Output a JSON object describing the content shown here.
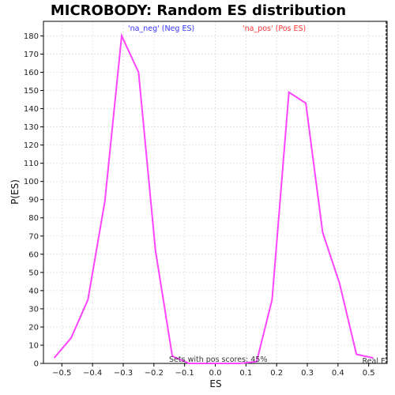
{
  "chart_data": {
    "type": "line",
    "title": "MICROBODY: Random ES distribution",
    "xlabel": "ES",
    "ylabel": "P(ES)",
    "xlim": [
      -0.56,
      0.56
    ],
    "ylim": [
      0,
      188
    ],
    "xticks": [
      -0.5,
      -0.4,
      -0.3,
      -0.2,
      -0.1,
      0.0,
      0.1,
      0.2,
      0.3,
      0.4,
      0.5
    ],
    "xtick_labels": [
      "−0.5",
      "−0.4",
      "−0.3",
      "−0.2",
      "−0.1",
      "0.0",
      "0.1",
      "0.2",
      "0.3",
      "0.4",
      "0.5"
    ],
    "yticks": [
      0,
      10,
      20,
      30,
      40,
      50,
      60,
      70,
      80,
      90,
      100,
      110,
      120,
      130,
      140,
      150,
      160,
      170,
      180
    ],
    "grid": true,
    "series": [
      {
        "name": "",
        "color": "#ff44ff",
        "x": [
          -0.525,
          -0.47,
          -0.415,
          -0.36,
          -0.305,
          -0.25,
          -0.195,
          -0.14,
          -0.085,
          -0.03,
          0.025,
          0.08,
          0.135,
          0.185,
          0.24,
          0.295,
          0.35,
          0.405,
          0.46,
          0.515
        ],
        "y": [
          3,
          14,
          35,
          89,
          180,
          160,
          62,
          4,
          0,
          0,
          0,
          0,
          1,
          35,
          149,
          143,
          72,
          44,
          5,
          3
        ]
      }
    ],
    "annotations": {
      "neg_label": "'na_neg' (Neg ES)",
      "neg_color": "#3333ff",
      "pos_label": "'na_pos' (Pos ES)",
      "pos_color": "#ff3333",
      "pos_scores_text": "Sets with pos scores: 45%",
      "real_es_text": "Real E"
    }
  }
}
